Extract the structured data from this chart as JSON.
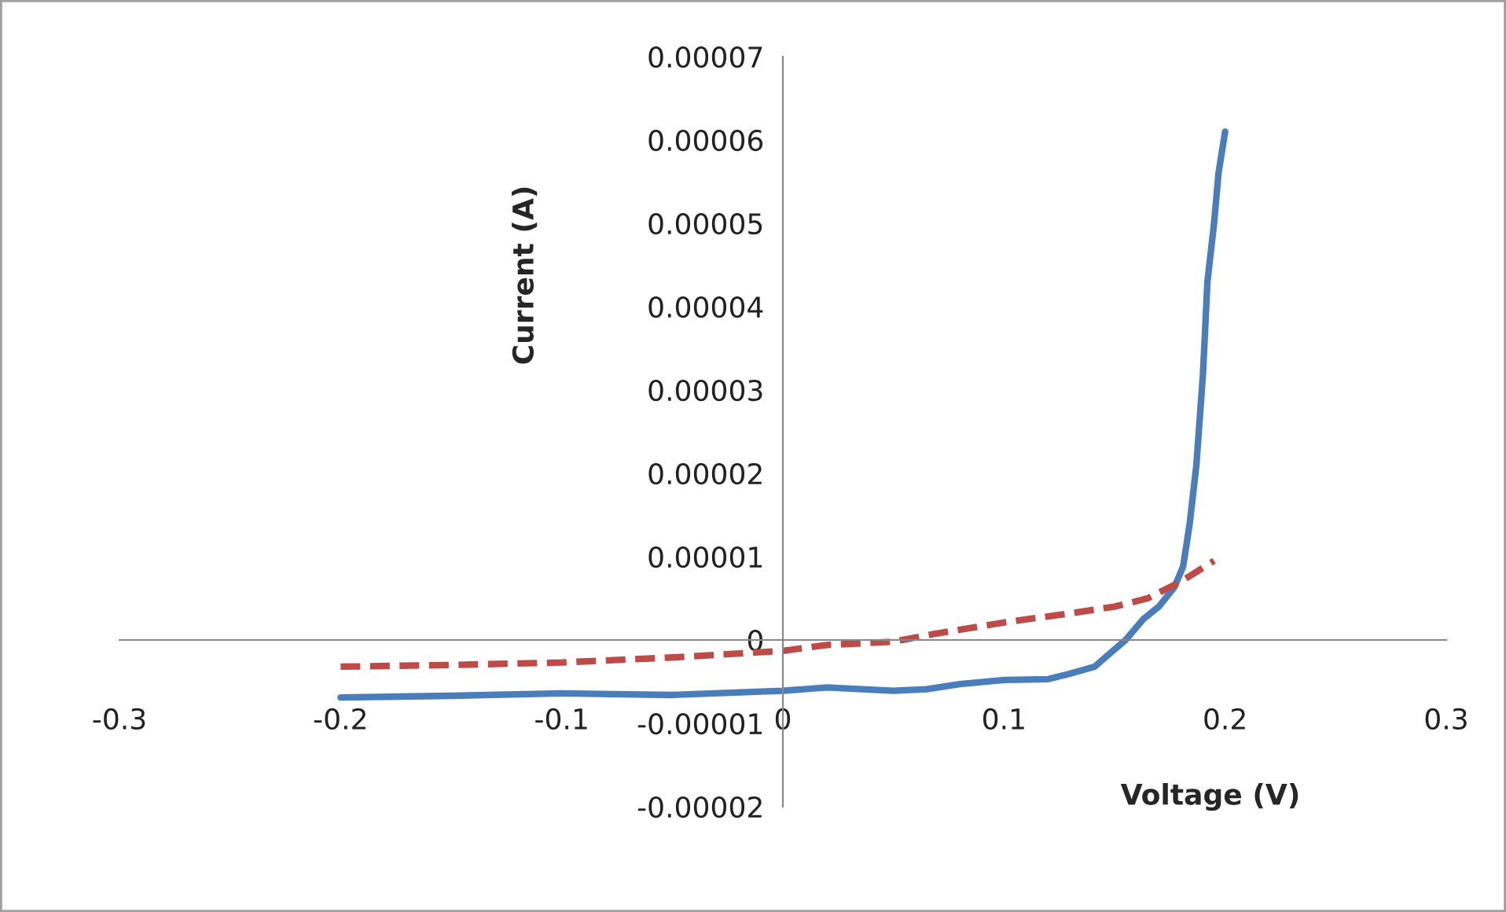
{
  "chart_data": {
    "type": "line",
    "xlabel": "Voltage (V)",
    "ylabel": "Current (A)",
    "xlim": [
      -0.3,
      0.3
    ],
    "xticks": [
      -0.3,
      -0.2,
      -0.1,
      0,
      0.1,
      0.2,
      0.3
    ],
    "ylim": [
      -2e-05,
      7e-05
    ],
    "yticks": [
      {
        "value": -2e-05,
        "label": "-0.00002"
      },
      {
        "value": -1e-05,
        "label": "-0.00001"
      },
      {
        "value": 0,
        "label": "0"
      },
      {
        "value": 1e-05,
        "label": "0.00001"
      },
      {
        "value": 2e-05,
        "label": "0.00002"
      },
      {
        "value": 3e-05,
        "label": "0.00003"
      },
      {
        "value": 4e-05,
        "label": "0.00004"
      },
      {
        "value": 5e-05,
        "label": "0.00005"
      },
      {
        "value": 6e-05,
        "label": "0.00006"
      },
      {
        "value": 7e-05,
        "label": "0.00007"
      }
    ],
    "grid": false,
    "series": [
      {
        "color": "#4a7ebb",
        "line_style": "solid",
        "x": [
          -0.2,
          -0.15,
          -0.1,
          -0.05,
          0,
          0.02,
          0.05,
          0.065,
          0.08,
          0.1,
          0.12,
          0.129,
          0.141,
          0.148,
          0.155,
          0.163,
          0.17,
          0.177,
          0.181,
          0.184,
          0.187,
          0.19,
          0.192,
          0.195,
          0.197,
          0.2
        ],
        "values": [
          -6.9e-06,
          -6.7e-06,
          -6.4e-06,
          -6.6e-06,
          -6.1e-06,
          -5.7e-06,
          -6.1e-06,
          -5.9e-06,
          -5.3e-06,
          -4.8e-06,
          -4.7e-06,
          -4.1e-06,
          -3.2e-06,
          -1.6e-06,
          0,
          2.5e-06,
          4e-06,
          6.3e-06,
          8.8e-06,
          1.4e-05,
          2.1e-05,
          3.2e-05,
          4.3e-05,
          5e-05,
          5.6e-05,
          6.1e-05
        ]
      },
      {
        "color": "#be4b48",
        "line_style": "dashed",
        "x": [
          -0.2,
          -0.15,
          -0.1,
          -0.05,
          0,
          0.02,
          0.05,
          0.07,
          0.1,
          0.13,
          0.15,
          0.165,
          0.18,
          0.195
        ],
        "values": [
          -3.2e-06,
          -3e-06,
          -2.7e-06,
          -2.1e-06,
          -1.3e-06,
          -6e-07,
          -2e-07,
          8e-07,
          2.1e-06,
          3.2e-06,
          4e-06,
          5e-06,
          7e-06,
          9.5e-06
        ]
      }
    ]
  }
}
